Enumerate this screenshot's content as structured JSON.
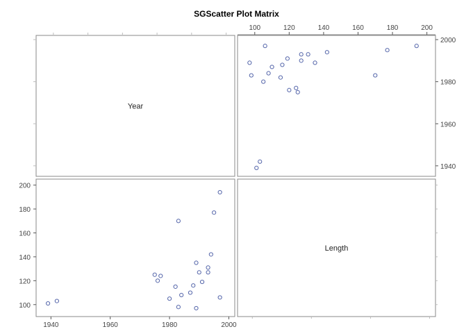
{
  "title": "SGScatter Plot Matrix",
  "chart_data": {
    "type": "scatter",
    "title": "SGScatter Plot Matrix",
    "variables": [
      "Year",
      "Length"
    ],
    "axes": {
      "Year": {
        "range": [
          1935,
          2002
        ],
        "ticks": [
          1940,
          1960,
          1980,
          2000
        ]
      },
      "Length": {
        "range": [
          90,
          205
        ],
        "ticks": [
          100,
          120,
          140,
          160,
          180,
          200
        ]
      }
    },
    "marker": "circle-open",
    "marker_color": "#5566aa",
    "grid": false,
    "points": [
      {
        "year": 1939,
        "length": 101
      },
      {
        "year": 1942,
        "length": 103
      },
      {
        "year": 1975,
        "length": 125
      },
      {
        "year": 1976,
        "length": 120
      },
      {
        "year": 1977,
        "length": 124
      },
      {
        "year": 1980,
        "length": 105
      },
      {
        "year": 1982,
        "length": 115
      },
      {
        "year": 1983,
        "length": 98
      },
      {
        "year": 1983,
        "length": 170
      },
      {
        "year": 1984,
        "length": 108
      },
      {
        "year": 1987,
        "length": 110
      },
      {
        "year": 1988,
        "length": 116
      },
      {
        "year": 1989,
        "length": 97
      },
      {
        "year": 1989,
        "length": 135
      },
      {
        "year": 1990,
        "length": 127
      },
      {
        "year": 1991,
        "length": 119
      },
      {
        "year": 1993,
        "length": 131
      },
      {
        "year": 1993,
        "length": 127
      },
      {
        "year": 1994,
        "length": 142
      },
      {
        "year": 1995,
        "length": 177
      },
      {
        "year": 1997,
        "length": 106
      },
      {
        "year": 1997,
        "length": 194
      }
    ]
  }
}
